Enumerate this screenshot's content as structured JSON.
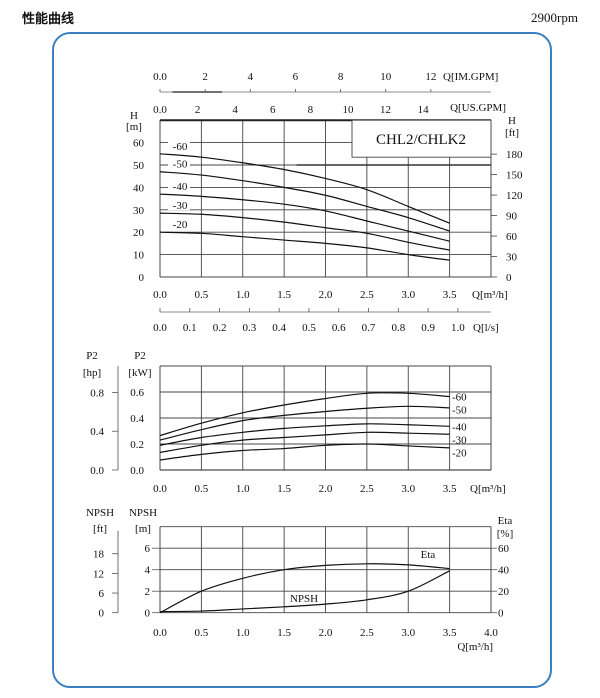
{
  "header": {
    "title": "性能曲线",
    "speed": "2900rpm"
  },
  "colors": {
    "frame_border": "#3a7fc1",
    "grid": "#555555",
    "curve": "#111111"
  },
  "chart_data": [
    {
      "type": "line",
      "model_label": "CHL2/CHLK2",
      "xlabel": "Q[m³/h]",
      "x_ticks": [
        "0.0",
        "0.5",
        "1.0",
        "1.5",
        "2.0",
        "2.5",
        "3.0",
        "3.5"
      ],
      "xlim": [
        0,
        4.0
      ],
      "ylabel_left": [
        "H",
        "[m]"
      ],
      "y_ticks_left": [
        "0",
        "10",
        "20",
        "30",
        "40",
        "50",
        "60"
      ],
      "ylim": [
        0,
        70
      ],
      "ylabel_right": [
        "H",
        "[ft]"
      ],
      "y_ticks_right": [
        "0",
        "30",
        "60",
        "90",
        "120",
        "150",
        "180"
      ],
      "secondary_x_axes": [
        {
          "label": "Q[IM.GPM]",
          "ticks": [
            "0.0",
            "2",
            "4",
            "6",
            "8",
            "10",
            "12"
          ],
          "values": [
            0,
            2,
            4,
            6,
            8,
            10,
            12
          ],
          "per_m3h": 3.666
        },
        {
          "label": "Q[US.GPM]",
          "ticks": [
            "0.0",
            "2",
            "4",
            "6",
            "8",
            "10",
            "12",
            "14"
          ],
          "values": [
            0,
            2,
            4,
            6,
            8,
            10,
            12,
            14
          ],
          "per_m3h": 4.403
        },
        {
          "label": "Q[l/s]",
          "ticks": [
            "0.0",
            "0.1",
            "0.2",
            "0.3",
            "0.4",
            "0.5",
            "0.6",
            "0.7",
            "0.8",
            "0.9",
            "1.0"
          ],
          "values": [
            0,
            0.1,
            0.2,
            0.3,
            0.4,
            0.5,
            0.6,
            0.7,
            0.8,
            0.9,
            1.0
          ],
          "per_m3h": 0.27778
        }
      ],
      "x": [
        0,
        0.5,
        1.0,
        1.5,
        2.0,
        2.5,
        3.0,
        3.5
      ],
      "series": [
        {
          "name": "-60",
          "values": [
            55,
            53.5,
            51,
            48,
            44,
            39,
            31.5,
            24
          ]
        },
        {
          "name": "-50",
          "values": [
            47,
            45.5,
            43,
            40,
            36.5,
            31.5,
            26.5,
            20.5
          ]
        },
        {
          "name": "-40",
          "values": [
            37,
            36,
            34.5,
            32.5,
            29.5,
            25,
            20.5,
            16
          ]
        },
        {
          "name": "-30",
          "values": [
            28.5,
            28,
            26.5,
            24.5,
            22,
            19.5,
            15.5,
            12
          ]
        },
        {
          "name": "-20",
          "values": [
            20,
            19.5,
            18,
            16.5,
            15,
            13,
            10,
            7.5
          ]
        }
      ],
      "grid": true
    },
    {
      "type": "line",
      "xlabel": "Q[m³/h]",
      "x_ticks": [
        "0.0",
        "0.5",
        "1.0",
        "1.5",
        "2.0",
        "2.5",
        "3.0",
        "3.5"
      ],
      "xlim": [
        0,
        4.0
      ],
      "ylabel_left": [
        "P2",
        "[kW]"
      ],
      "y_ticks_left": [
        "0.0",
        "0.2",
        "0.4",
        "0.6"
      ],
      "ylim": [
        0,
        0.8
      ],
      "ylabel_outer": [
        "P2",
        "[hp]"
      ],
      "y_ticks_outer": [
        "0.0",
        "0.4",
        "0.8"
      ],
      "x": [
        0,
        0.5,
        1.0,
        1.5,
        2.0,
        2.5,
        3.0,
        3.5
      ],
      "series": [
        {
          "name": "-60",
          "values": [
            0.265,
            0.36,
            0.44,
            0.5,
            0.55,
            0.59,
            0.59,
            0.565
          ]
        },
        {
          "name": "-50",
          "values": [
            0.23,
            0.31,
            0.38,
            0.42,
            0.45,
            0.475,
            0.49,
            0.478
          ]
        },
        {
          "name": "-40",
          "values": [
            0.19,
            0.25,
            0.29,
            0.32,
            0.34,
            0.355,
            0.348,
            0.336
          ]
        },
        {
          "name": "-30",
          "values": [
            0.135,
            0.19,
            0.23,
            0.25,
            0.27,
            0.29,
            0.283,
            0.275
          ]
        },
        {
          "name": "-20",
          "values": [
            0.077,
            0.12,
            0.15,
            0.165,
            0.19,
            0.2,
            0.185,
            0.17
          ]
        }
      ],
      "grid": true
    },
    {
      "type": "line",
      "xlabel": "Q[m³/h]",
      "x_ticks": [
        "0.0",
        "0.5",
        "1.0",
        "1.5",
        "2.0",
        "2.5",
        "3.0",
        "3.5",
        "4.0"
      ],
      "xlim": [
        0,
        4.0
      ],
      "ylabel_left": [
        "NPSH",
        "[m]"
      ],
      "y_ticks_left": [
        "0",
        "2",
        "4",
        "6"
      ],
      "ylim": [
        0,
        8
      ],
      "ylabel_outer": [
        "NPSH",
        "[ft]"
      ],
      "y_ticks_outer": [
        "0",
        "6",
        "12",
        "18"
      ],
      "ylabel_right": [
        "Eta",
        "[%]"
      ],
      "y_ticks_right": [
        "0",
        "20",
        "40",
        "60"
      ],
      "ylim_right": [
        0,
        80
      ],
      "x": [
        0,
        0.5,
        1.0,
        1.5,
        2.0,
        2.5,
        3.0,
        3.5
      ],
      "series": [
        {
          "name": "Eta",
          "axis": "right",
          "values": [
            0,
            20,
            32,
            40,
            44,
            45.5,
            44.5,
            41
          ]
        },
        {
          "name": "NPSH",
          "axis": "left",
          "values": [
            0.1,
            0.15,
            0.35,
            0.55,
            0.8,
            1.2,
            2.0,
            3.9
          ]
        }
      ],
      "grid": true
    }
  ]
}
